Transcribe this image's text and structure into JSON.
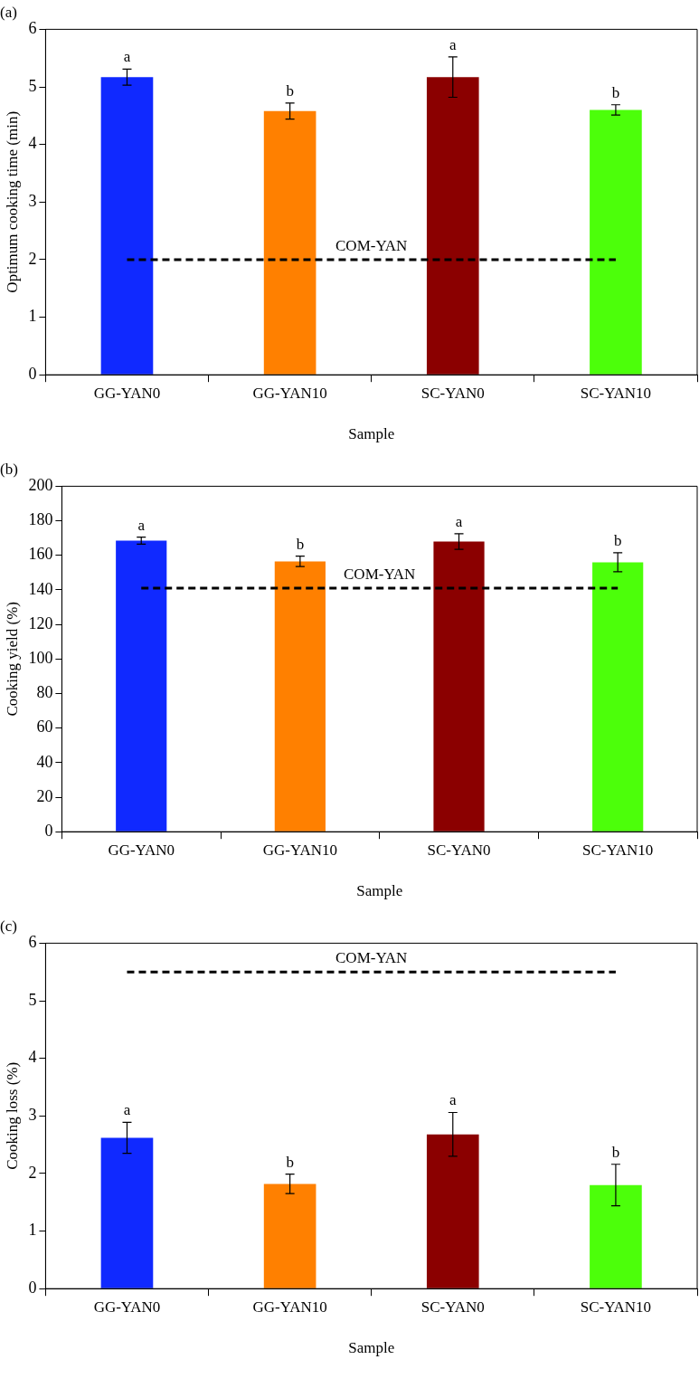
{
  "chart_data": [
    {
      "type": "bar",
      "title": "(a)",
      "xlabel": "Sample",
      "ylabel": "Optimum cooking time (min)",
      "categories": [
        "GG-YAN0",
        "GG-YAN10",
        "SC-YAN0",
        "SC-YAN10"
      ],
      "values": [
        5.17,
        4.58,
        5.17,
        4.6
      ],
      "errors": [
        0.14,
        0.14,
        0.35,
        0.09
      ],
      "colors": [
        "#1029ff",
        "#ff8000",
        "#8b0000",
        "#4cff0a"
      ],
      "ylim": [
        0,
        6
      ],
      "yticks": [
        0,
        1,
        2,
        3,
        4,
        5,
        6
      ],
      "grid": false,
      "legend": false,
      "ref_lines": [
        {
          "axis": "y",
          "value": 2,
          "label": "COM-YAN",
          "color": "#000000",
          "line_style": "dashed"
        }
      ],
      "annotations": [
        {
          "text": "a",
          "x": "GG-YAN0",
          "y": 5.31
        },
        {
          "text": "b",
          "x": "GG-YAN10",
          "y": 4.72
        },
        {
          "text": "a",
          "x": "SC-YAN0",
          "y": 5.52
        },
        {
          "text": "b",
          "x": "SC-YAN10",
          "y": 4.69
        }
      ]
    },
    {
      "type": "bar",
      "title": "(b)",
      "xlabel": "Sample",
      "ylabel": "Cooking yield (%)",
      "categories": [
        "GG-YAN0",
        "GG-YAN10",
        "SC-YAN0",
        "SC-YAN10"
      ],
      "values": [
        168.5,
        156.5,
        168,
        156
      ],
      "errors": [
        2,
        3,
        4.5,
        5.5
      ],
      "colors": [
        "#1029ff",
        "#ff8000",
        "#8b0000",
        "#4cff0a"
      ],
      "ylim": [
        0,
        200
      ],
      "yticks": [
        0,
        20,
        40,
        60,
        80,
        100,
        120,
        140,
        160,
        180,
        200
      ],
      "grid": false,
      "legend": false,
      "ref_lines": [
        {
          "axis": "y",
          "value": 141,
          "label": "COM-YAN",
          "color": "#000000",
          "line_style": "dashed"
        }
      ],
      "annotations": [
        {
          "text": "a",
          "x": "GG-YAN0",
          "y": 170.5
        },
        {
          "text": "b",
          "x": "GG-YAN10",
          "y": 159.5
        },
        {
          "text": "a",
          "x": "SC-YAN0",
          "y": 172.5
        },
        {
          "text": "b",
          "x": "SC-YAN10",
          "y": 161.5
        }
      ]
    },
    {
      "type": "bar",
      "title": "(c)",
      "xlabel": "Sample",
      "ylabel": "Cooking loss (%)",
      "categories": [
        "GG-YAN0",
        "GG-YAN10",
        "SC-YAN0",
        "SC-YAN10"
      ],
      "values": [
        2.62,
        1.82,
        2.68,
        1.8
      ],
      "errors": [
        0.27,
        0.17,
        0.38,
        0.36
      ],
      "colors": [
        "#1029ff",
        "#ff8000",
        "#8b0000",
        "#4cff0a"
      ],
      "ylim": [
        0,
        6
      ],
      "yticks": [
        0,
        1,
        2,
        3,
        4,
        5,
        6
      ],
      "grid": false,
      "legend": false,
      "ref_lines": [
        {
          "axis": "y",
          "value": 5.5,
          "label": "COM-YAN",
          "color": "#000000",
          "line_style": "dashed"
        }
      ],
      "annotations": [
        {
          "text": "a",
          "x": "GG-YAN0",
          "y": 2.89
        },
        {
          "text": "b",
          "x": "GG-YAN10",
          "y": 1.99
        },
        {
          "text": "a",
          "x": "SC-YAN0",
          "y": 3.06
        },
        {
          "text": "b",
          "x": "SC-YAN10",
          "y": 2.16
        }
      ]
    }
  ]
}
